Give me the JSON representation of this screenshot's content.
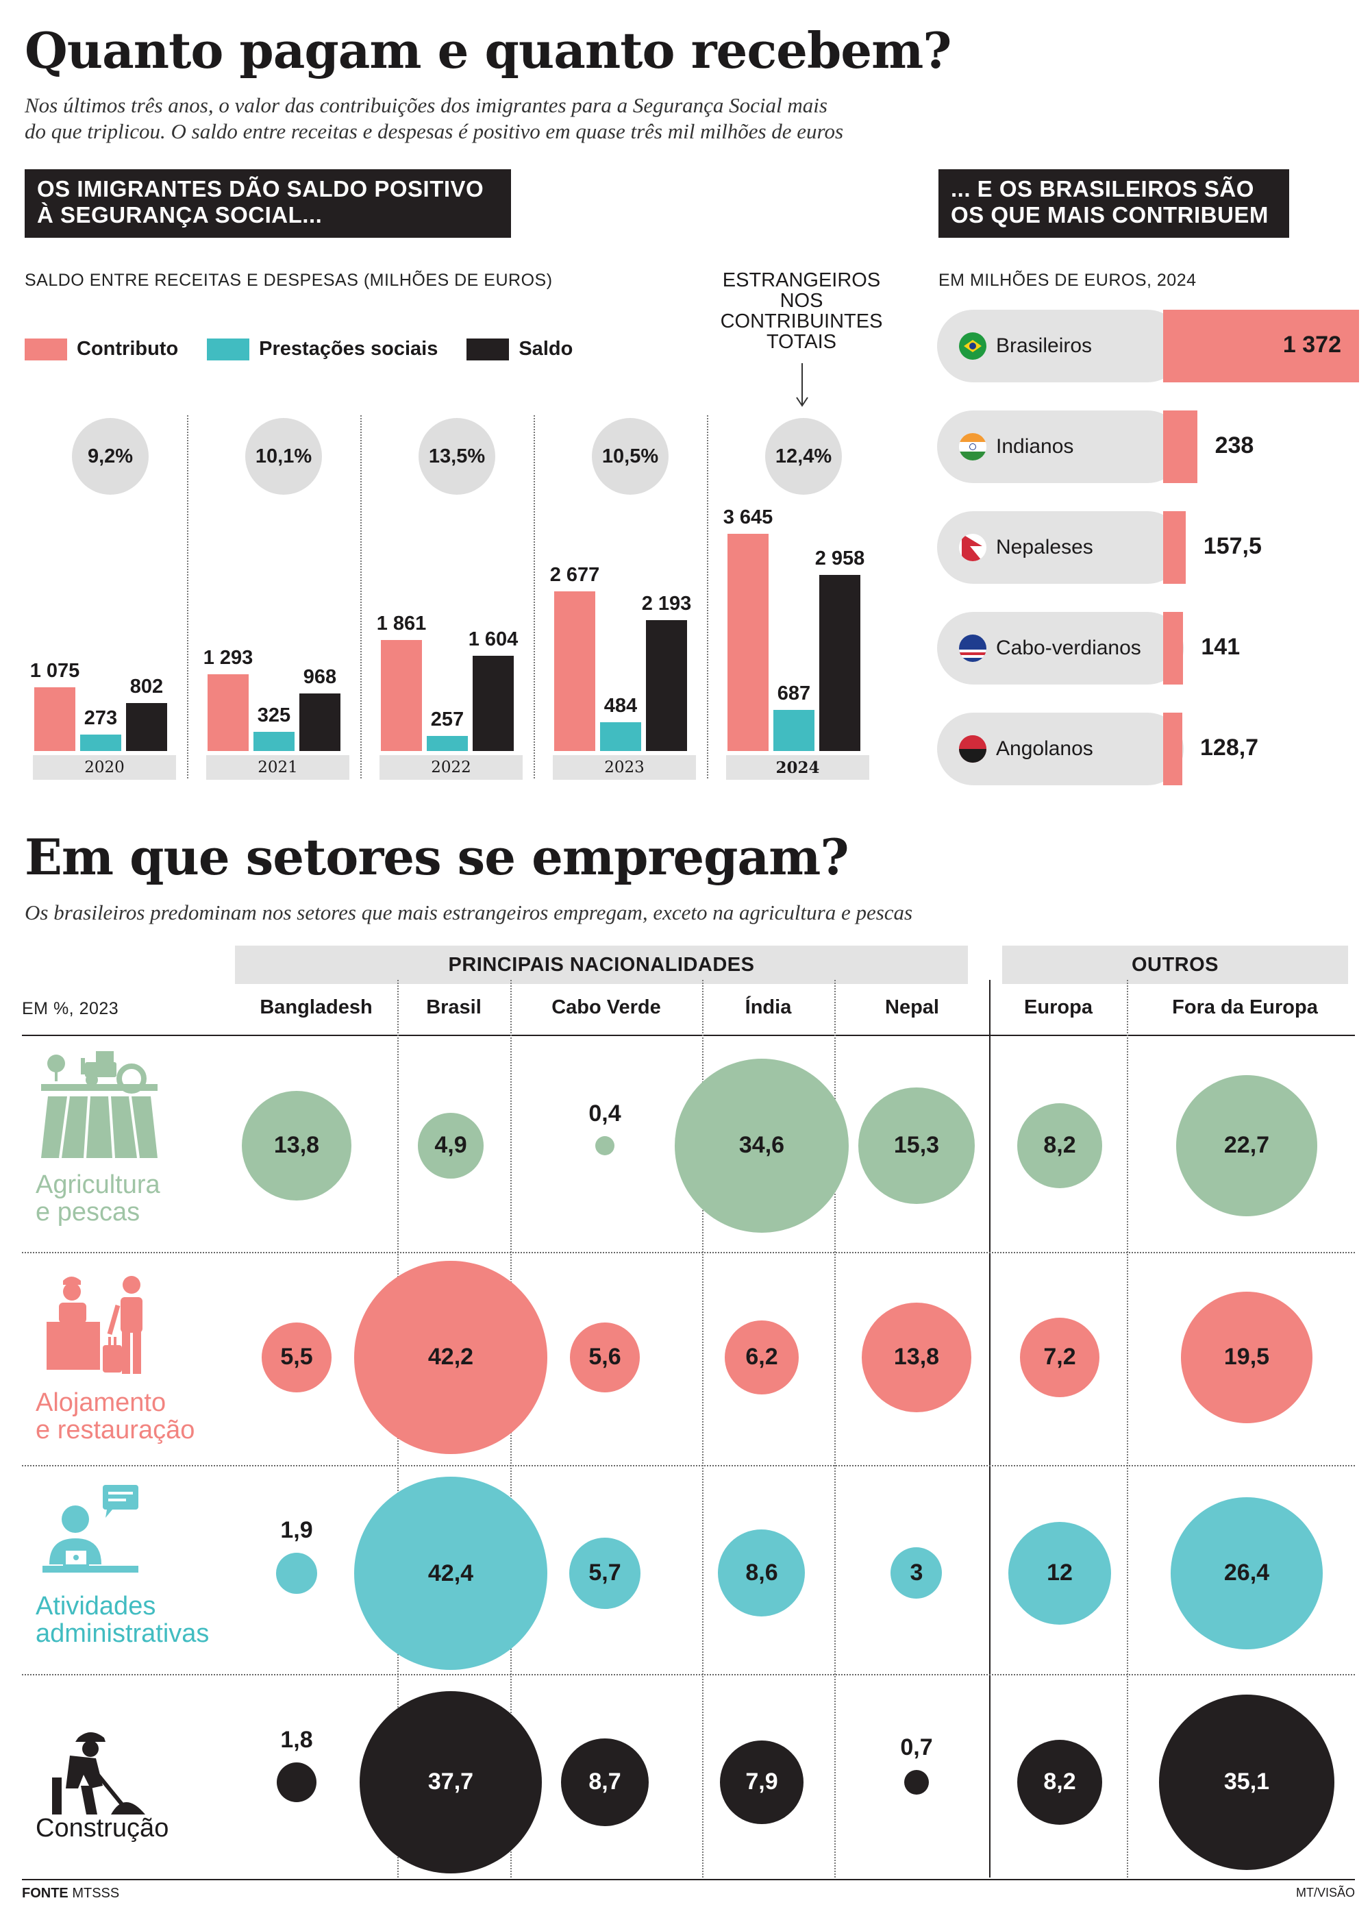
{
  "header": {
    "title": "Quanto pagam e quanto recebem?",
    "subtitle_line1": "Nos últimos três anos, o valor das contribuições dos imigrantes para a Segurança Social mais",
    "subtitle_line2": "do que triplicou. O saldo entre receitas e despesas é positivo em quase três mil milhões de euros"
  },
  "left_panel": {
    "box_line1": "OS IMIGRANTES DÃO SALDO POSITIVO",
    "box_line2": "À SEGURANÇA SOCIAL...",
    "caption": "SALDO ENTRE RECEITAS E DESPESAS (MILHÕES DE EUROS)",
    "legend": [
      "Contributo",
      "Prestações sociais",
      "Saldo"
    ],
    "annotation_lines": [
      "ESTRANGEIROS",
      "NOS",
      "CONTRIBUINTES",
      "TOTAIS"
    ]
  },
  "right_panel": {
    "box_line1": "... E OS BRASILEIROS SÃO",
    "box_line2": "OS QUE MAIS CONTRIBUEM",
    "caption": "EM MILHÕES DE EUROS, 2024"
  },
  "section2": {
    "title": "Em que setores se empregam?",
    "subtitle": "Os brasileiros predominam nos setores que mais estrangeiros empregam, exceto na agricultura e pescas",
    "group_main": "PRINCIPAIS NACIONALIDADES",
    "group_other": "OUTROS",
    "unit_label": "EM %, 2023"
  },
  "footer": {
    "source_bold": "FONTE",
    "source": "MTSSS",
    "credit": "MT/VISÃO"
  },
  "colors": {
    "contributo": "#f28480",
    "prestacoes": "#41bcc1",
    "saldo": "#231f20",
    "agricultura": "#9fc4a5",
    "alojamento": "#f28480",
    "administrativas": "#67c8cf",
    "construcao": "#231f20"
  },
  "chart_data": [
    {
      "type": "bar",
      "title": "OS IMIGRANTES DÃO SALDO POSITIVO À SEGURANÇA SOCIAL...",
      "ylabel": "SALDO ENTRE RECEITAS E DESPESAS (MILHÕES DE EUROS)",
      "categories": [
        "2020",
        "2021",
        "2022",
        "2023",
        "2024"
      ],
      "category_labels": [
        "2020",
        "2021",
        "2022",
        "2023",
        "2024"
      ],
      "series": [
        {
          "name": "Contributo",
          "values": [
            1075,
            1293,
            1861,
            2677,
            3645
          ],
          "labels": [
            "1 075",
            "1 293",
            "1 861",
            "2 677",
            "3 645"
          ]
        },
        {
          "name": "Prestações sociais",
          "values": [
            273,
            325,
            257,
            484,
            687
          ],
          "labels": [
            "273",
            "325",
            "257",
            "484",
            "687"
          ]
        },
        {
          "name": "Saldo",
          "values": [
            802,
            968,
            1604,
            2193,
            2958
          ],
          "labels": [
            "802",
            "968",
            "1 604",
            "2 193",
            "2 958"
          ]
        }
      ],
      "share_foreigners": [
        "9,2%",
        "10,1%",
        "13,5%",
        "10,5%",
        "12,4%"
      ],
      "ylim": [
        0,
        3645
      ],
      "legend": "top-left",
      "grid": false
    },
    {
      "type": "bar",
      "title": "... E OS BRASILEIROS SÃO OS QUE MAIS CONTRIBUEM",
      "ylabel": "EM MILHÕES DE EUROS, 2024",
      "categories": [
        "Brasileiros",
        "Indianos",
        "Nepaleses",
        "Cabo-verdianos",
        "Angolanos"
      ],
      "values": [
        1372,
        238,
        157.5,
        141,
        128.7
      ],
      "labels": [
        "1 372",
        "238",
        "157,5",
        "141",
        "128,7"
      ],
      "orientation": "horizontal"
    },
    {
      "type": "scatter",
      "title": "Em que setores se empregam?",
      "unit": "EM %, 2023",
      "columns": [
        "Bangladesh",
        "Brasil",
        "Cabo Verde",
        "Índia",
        "Nepal",
        "Europa",
        "Fora da Europa"
      ],
      "rows": [
        {
          "name": "Agricultura e pescas",
          "label_lines": [
            "Agricultura",
            "e pescas"
          ],
          "values": [
            13.8,
            4.9,
            0.4,
            34.6,
            15.3,
            8.2,
            22.7
          ],
          "labels": [
            "13,8",
            "4,9",
            "0,4",
            "34,6",
            "15,3",
            "8,2",
            "22,7"
          ]
        },
        {
          "name": "Alojamento e restauração",
          "label_lines": [
            "Alojamento",
            "e restauração"
          ],
          "values": [
            5.5,
            42.2,
            5.6,
            6.2,
            13.8,
            7.2,
            19.5
          ],
          "labels": [
            "5,5",
            "42,2",
            "5,6",
            "6,2",
            "13,8",
            "7,2",
            "19,5"
          ]
        },
        {
          "name": "Atividades administrativas",
          "label_lines": [
            "Atividades",
            "administrativas"
          ],
          "values": [
            1.9,
            42.4,
            5.7,
            8.6,
            3,
            12,
            26.4
          ],
          "labels": [
            "1,9",
            "42,4",
            "5,7",
            "8,6",
            "3",
            "12",
            "26,4"
          ]
        },
        {
          "name": "Construção",
          "label_lines": [
            "Construção",
            ""
          ],
          "values": [
            1.8,
            37.7,
            8.7,
            7.9,
            0.7,
            8.2,
            35.1
          ],
          "labels": [
            "1,8",
            "37,7",
            "8,7",
            "7,9",
            "0,7",
            "8,2",
            "35,1"
          ]
        }
      ]
    }
  ]
}
